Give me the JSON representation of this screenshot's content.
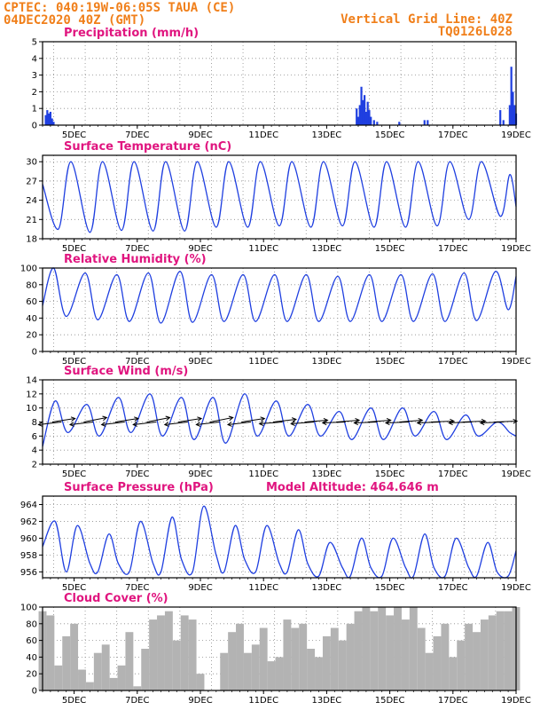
{
  "header": {
    "line1_left": "CPTEC:  040:19W-06:05S  TAUA (CE)",
    "line2_left": "04DEC2020 40Z (GMT)",
    "line1_right": "Vertical Grid Line: 40Z",
    "line2_right": "TQ0126L028"
  },
  "colors": {
    "header": "#f07f1a",
    "panel_title": "#e0157f",
    "series": "#1f3fe0",
    "cloud": "#b3b3b3",
    "arrow": "#000000",
    "grid": "#8c8c8c"
  },
  "chart_data": [
    {
      "type": "bar",
      "title": "Precipitation (mm/h)",
      "x_ticks": [
        "5DEC",
        "7DEC",
        "9DEC",
        "11DEC",
        "13DEC",
        "15DEC",
        "17DEC",
        "19DEC"
      ],
      "ylim": [
        0,
        5
      ],
      "y_ticks": [
        0,
        1,
        2,
        3,
        4,
        5
      ],
      "grid": true,
      "x": [
        4.1,
        4.15,
        4.2,
        4.25,
        4.3,
        4.35,
        13.95,
        14.0,
        14.05,
        14.1,
        14.15,
        14.2,
        14.25,
        14.3,
        14.35,
        14.4,
        14.5,
        14.6,
        15.3,
        16.1,
        16.2,
        18.5,
        18.6,
        18.8,
        18.85,
        18.9,
        18.95,
        19.0
      ],
      "values": [
        0.6,
        0.9,
        0.7,
        0.8,
        0.4,
        0.2,
        1.0,
        0.5,
        1.2,
        2.3,
        1.5,
        1.8,
        0.8,
        1.4,
        0.9,
        0.5,
        0.3,
        0.2,
        0.2,
        0.3,
        0.3,
        0.9,
        0.3,
        1.2,
        3.5,
        2.0,
        1.2,
        0.7
      ]
    },
    {
      "type": "line",
      "title": "Surface Temperature (nC)",
      "x_ticks": [
        "5DEC",
        "7DEC",
        "9DEC",
        "11DEC",
        "13DEC",
        "15DEC",
        "17DEC",
        "19DEC"
      ],
      "ylim": [
        18,
        31
      ],
      "y_ticks": [
        18,
        21,
        24,
        27,
        30
      ],
      "grid": true,
      "x": [
        4.0,
        4.5,
        4.9,
        5.5,
        5.9,
        6.5,
        6.9,
        7.5,
        7.9,
        8.5,
        8.9,
        9.5,
        9.9,
        10.5,
        10.9,
        11.5,
        11.9,
        12.5,
        12.9,
        13.5,
        13.9,
        14.5,
        14.9,
        15.5,
        15.9,
        16.5,
        16.9,
        17.5,
        17.9,
        18.5,
        18.8,
        19.0
      ],
      "values": [
        26.5,
        19.5,
        30.0,
        19.0,
        30.0,
        19.3,
        30.0,
        19.2,
        30.0,
        19.2,
        30.0,
        19.8,
        30.0,
        19.8,
        30.0,
        20.0,
        30.0,
        19.8,
        30.0,
        20.0,
        30.0,
        19.8,
        30.0,
        19.8,
        30.0,
        20.0,
        30.0,
        21.0,
        30.0,
        21.5,
        28.0,
        23.0
      ]
    },
    {
      "type": "line",
      "title": "Relative Humidity (%)",
      "x_ticks": [
        "5DEC",
        "7DEC",
        "9DEC",
        "11DEC",
        "13DEC",
        "15DEC",
        "17DEC",
        "19DEC"
      ],
      "ylim": [
        0,
        100
      ],
      "y_ticks": [
        0,
        20,
        40,
        60,
        80,
        100
      ],
      "grid": true,
      "x": [
        4.0,
        4.35,
        4.75,
        5.35,
        5.75,
        6.35,
        6.75,
        7.35,
        7.75,
        8.35,
        8.75,
        9.35,
        9.75,
        10.35,
        10.75,
        11.35,
        11.75,
        12.35,
        12.75,
        13.35,
        13.75,
        14.35,
        14.75,
        15.35,
        15.75,
        16.35,
        16.75,
        17.35,
        17.75,
        18.35,
        18.75,
        19.0
      ],
      "values": [
        55,
        100,
        42,
        94,
        38,
        92,
        36,
        94,
        34,
        96,
        35,
        92,
        36,
        92,
        36,
        92,
        36,
        92,
        36,
        90,
        36,
        92,
        36,
        92,
        36,
        93,
        36,
        94,
        37,
        96,
        50,
        90
      ]
    },
    {
      "type": "line",
      "title": "Surface Wind (m/s)",
      "x_ticks": [
        "5DEC",
        "7DEC",
        "9DEC",
        "11DEC",
        "13DEC",
        "15DEC",
        "17DEC",
        "19DEC"
      ],
      "ylim": [
        2,
        14
      ],
      "y_ticks": [
        2,
        4,
        6,
        8,
        10,
        12,
        14
      ],
      "grid": true,
      "x": [
        4.0,
        4.4,
        4.8,
        5.4,
        5.8,
        6.4,
        6.8,
        7.4,
        7.8,
        8.4,
        8.8,
        9.4,
        9.8,
        10.4,
        10.8,
        11.4,
        11.8,
        12.4,
        12.8,
        13.4,
        13.8,
        14.4,
        14.8,
        15.4,
        15.8,
        16.4,
        16.8,
        17.4,
        17.8,
        18.4,
        18.8,
        19.0
      ],
      "values": [
        4.5,
        11.0,
        6.5,
        10.5,
        6.0,
        11.5,
        6.5,
        12.0,
        6.0,
        11.5,
        5.5,
        11.5,
        5.0,
        12.0,
        6.0,
        11.0,
        6.0,
        10.5,
        6.0,
        9.5,
        5.5,
        10.0,
        5.5,
        10.0,
        6.0,
        9.5,
        5.5,
        9.0,
        6.0,
        8.0,
        6.5,
        6.0
      ],
      "wind_arrows": [
        {
          "x": 4.3,
          "dx": 1,
          "dy": -0.4
        },
        {
          "x": 4.6,
          "dx": -1,
          "dy": 0.3
        },
        {
          "x": 5.3,
          "dx": 1,
          "dy": -0.5
        },
        {
          "x": 5.6,
          "dx": -1,
          "dy": 0.3
        },
        {
          "x": 6.3,
          "dx": 1,
          "dy": -0.4
        },
        {
          "x": 6.6,
          "dx": -1,
          "dy": 0.3
        },
        {
          "x": 7.3,
          "dx": 1,
          "dy": -0.5
        },
        {
          "x": 7.6,
          "dx": -1,
          "dy": 0.3
        },
        {
          "x": 8.3,
          "dx": 1,
          "dy": -0.4
        },
        {
          "x": 8.6,
          "dx": -1,
          "dy": 0.3
        },
        {
          "x": 9.3,
          "dx": 1,
          "dy": -0.5
        },
        {
          "x": 9.6,
          "dx": -1,
          "dy": 0.3
        },
        {
          "x": 10.3,
          "dx": 1,
          "dy": -0.4
        },
        {
          "x": 10.6,
          "dx": -1,
          "dy": 0.3
        },
        {
          "x": 11.3,
          "dx": 1,
          "dy": -0.3
        },
        {
          "x": 11.6,
          "dx": -1,
          "dy": 0.2
        },
        {
          "x": 12.3,
          "dx": 1,
          "dy": -0.2
        },
        {
          "x": 12.6,
          "dx": -1,
          "dy": 0.2
        },
        {
          "x": 13.3,
          "dx": 1,
          "dy": -0.2
        },
        {
          "x": 13.6,
          "dx": -1,
          "dy": 0.1
        },
        {
          "x": 14.3,
          "dx": 1,
          "dy": -0.2
        },
        {
          "x": 14.6,
          "dx": -1,
          "dy": 0.1
        },
        {
          "x": 15.3,
          "dx": 1,
          "dy": -0.2
        },
        {
          "x": 15.6,
          "dx": -1,
          "dy": 0.1
        },
        {
          "x": 16.3,
          "dx": 1,
          "dy": -0.1
        },
        {
          "x": 16.6,
          "dx": -1,
          "dy": 0.1
        },
        {
          "x": 17.3,
          "dx": 1,
          "dy": -0.1
        },
        {
          "x": 17.6,
          "dx": -1,
          "dy": 0.1
        },
        {
          "x": 18.3,
          "dx": 1,
          "dy": -0.1
        },
        {
          "x": 18.6,
          "dx": -1,
          "dy": 0.1
        }
      ]
    },
    {
      "type": "line",
      "title": "Surface Pressure (hPa)",
      "annotation": "Model Altitude: 464.646 m",
      "x_ticks": [
        "5DEC",
        "7DEC",
        "9DEC",
        "11DEC",
        "13DEC",
        "15DEC",
        "17DEC",
        "19DEC"
      ],
      "ylim": [
        955.3,
        965
      ],
      "y_ticks": [
        956,
        958,
        960,
        962,
        964
      ],
      "grid": true,
      "x": [
        4.0,
        4.4,
        4.75,
        5.1,
        5.5,
        5.75,
        6.1,
        6.4,
        6.75,
        7.1,
        7.5,
        7.75,
        8.1,
        8.4,
        8.75,
        9.1,
        9.5,
        9.75,
        10.1,
        10.4,
        10.75,
        11.1,
        11.5,
        11.75,
        12.1,
        12.4,
        12.75,
        13.1,
        13.5,
        13.75,
        14.1,
        14.4,
        14.75,
        15.1,
        15.5,
        15.75,
        16.1,
        16.4,
        16.75,
        17.1,
        17.5,
        17.75,
        18.1,
        18.4,
        18.75,
        19.0
      ],
      "values": [
        959.0,
        962.0,
        956.0,
        961.5,
        957.0,
        956.0,
        960.5,
        957.0,
        956.0,
        962.0,
        957.0,
        956.0,
        962.5,
        957.5,
        956.0,
        963.8,
        958.0,
        956.0,
        961.5,
        957.5,
        956.0,
        961.5,
        957.0,
        956.0,
        961.0,
        957.0,
        955.5,
        959.5,
        956.5,
        955.5,
        960.0,
        956.5,
        955.5,
        960.0,
        956.5,
        955.5,
        960.5,
        956.5,
        955.5,
        960.0,
        956.5,
        955.5,
        959.5,
        956.0,
        955.5,
        958.5
      ]
    },
    {
      "type": "bar",
      "title": "Cloud Cover (%)",
      "x_ticks": [
        "5DEC",
        "7DEC",
        "9DEC",
        "11DEC",
        "13DEC",
        "15DEC",
        "17DEC",
        "19DEC"
      ],
      "ylim": [
        0,
        100
      ],
      "y_ticks": [
        0,
        20,
        40,
        60,
        80,
        100
      ],
      "grid": true,
      "x": [
        4.0,
        4.25,
        4.5,
        4.75,
        5.0,
        5.25,
        5.5,
        5.75,
        6.0,
        6.25,
        6.5,
        6.75,
        7.0,
        7.25,
        7.5,
        7.75,
        8.0,
        8.25,
        8.5,
        8.75,
        9.0,
        9.25,
        9.5,
        9.75,
        10.0,
        10.25,
        10.5,
        10.75,
        11.0,
        11.25,
        11.5,
        11.75,
        12.0,
        12.25,
        12.5,
        12.75,
        13.0,
        13.25,
        13.5,
        13.75,
        14.0,
        14.25,
        14.5,
        14.75,
        15.0,
        15.25,
        15.5,
        15.75,
        16.0,
        16.25,
        16.5,
        16.75,
        17.0,
        17.25,
        17.5,
        17.75,
        18.0,
        18.25,
        18.5,
        18.75,
        19.0
      ],
      "values": [
        95,
        90,
        30,
        65,
        80,
        25,
        10,
        45,
        55,
        15,
        30,
        70,
        5,
        50,
        85,
        90,
        95,
        60,
        90,
        85,
        20,
        0,
        0,
        45,
        70,
        80,
        45,
        55,
        75,
        35,
        40,
        85,
        75,
        80,
        50,
        40,
        65,
        75,
        60,
        80,
        95,
        100,
        95,
        100,
        90,
        100,
        85,
        100,
        75,
        45,
        65,
        80,
        40,
        60,
        80,
        70,
        85,
        90,
        95,
        95,
        100
      ]
    }
  ]
}
